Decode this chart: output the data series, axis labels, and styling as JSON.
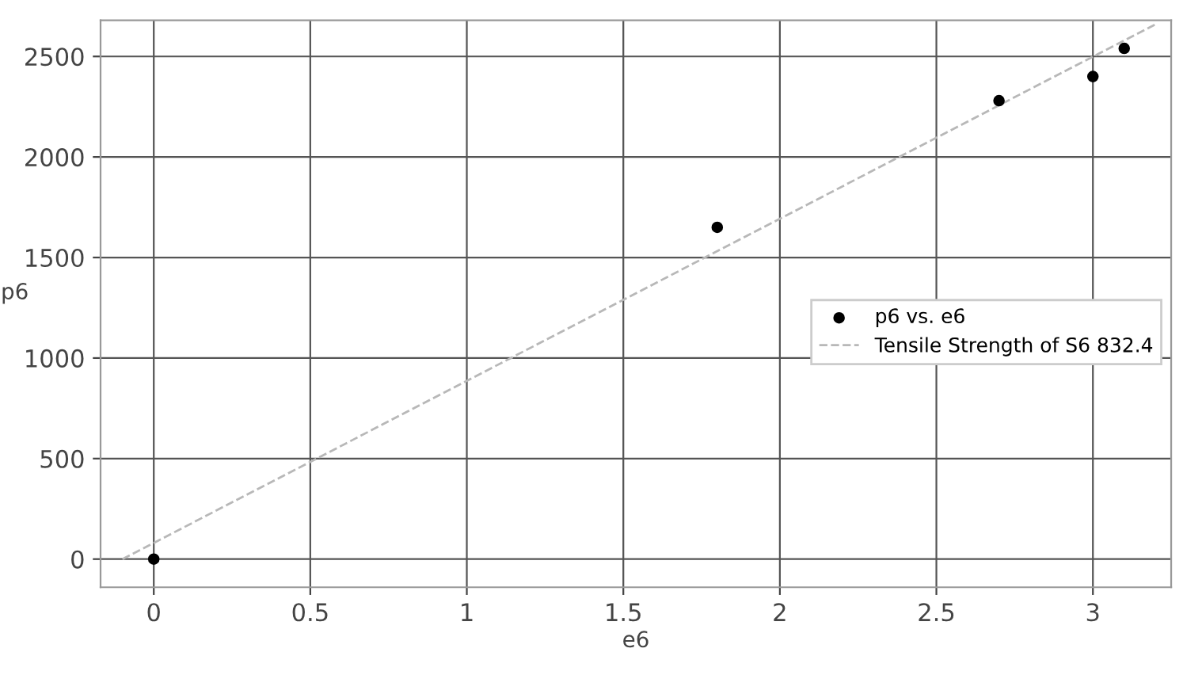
{
  "chart_data": {
    "type": "scatter",
    "xlabel": "e6",
    "ylabel": "p6",
    "xlim": [
      -0.17,
      3.25
    ],
    "ylim": [
      -140,
      2680
    ],
    "xticks": [
      0,
      {
        "value": 0.5,
        "label": "0.5"
      },
      1,
      {
        "value": 1.5,
        "label": "1.5"
      },
      2,
      {
        "value": 2.5,
        "label": "2.5"
      },
      3
    ],
    "yticks": [
      0,
      500,
      1000,
      1500,
      2000,
      2500
    ],
    "grid": true,
    "legend": "right",
    "series": [
      {
        "name": "p6 vs. e6",
        "color": "#000000",
        "marker": "circle",
        "x": [
          0,
          1.8,
          2.7,
          3.0,
          3.1
        ],
        "values": [
          0,
          1650,
          2280,
          2400,
          2540
        ]
      },
      {
        "name": "Tensile Strength of S6 832.4",
        "type": "line",
        "color": "#b8b8b8",
        "line_style": "dashed",
        "marker": "none",
        "x": [
          -0.1,
          3.2
        ],
        "values": [
          0,
          2660
        ]
      }
    ]
  }
}
